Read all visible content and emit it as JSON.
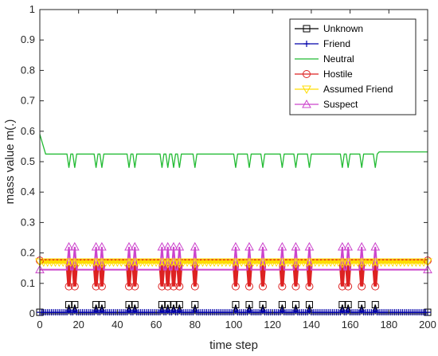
{
  "chart_data": {
    "type": "line",
    "xlabel": "time step",
    "ylabel": "mass value m(.)",
    "xlim": [
      0,
      200
    ],
    "ylim": [
      0,
      1
    ],
    "xticks": [
      "0",
      "20",
      "40",
      "60",
      "80",
      "100",
      "120",
      "140",
      "160",
      "180",
      "200"
    ],
    "yticks": [
      "0",
      "0.1",
      "0.2",
      "0.3",
      "0.4",
      "0.5",
      "0.6",
      "0.7",
      "0.8",
      "0.9",
      "1"
    ],
    "grid": false,
    "legend_position": "top-right",
    "event_steps": [
      15,
      18,
      29,
      32,
      46,
      49,
      63,
      66,
      69,
      72,
      80,
      101,
      108,
      115,
      125,
      132,
      139,
      156,
      159,
      166,
      173
    ],
    "series": [
      {
        "name": "Unknown",
        "color": "#000000",
        "marker": "square",
        "baseline": 0.005,
        "event_value": 0.03
      },
      {
        "name": "Friend",
        "color": "#0000aa",
        "marker": "plus",
        "baseline": 0.005,
        "event_value": 0.01
      },
      {
        "name": "Neutral",
        "color": "#22bb33",
        "marker": "none",
        "initial": 0.59,
        "baseline": 0.525,
        "event_value": 0.48,
        "final": 0.532
      },
      {
        "name": "Hostile",
        "color": "#dd2222",
        "marker": "circle",
        "baseline": 0.175,
        "event_value": 0.09
      },
      {
        "name": "Assumed Friend",
        "color": "#ffdd00",
        "marker": "triangle-down",
        "baseline": 0.17,
        "event_value": 0.165
      },
      {
        "name": "Suspect",
        "color": "#cc44cc",
        "marker": "triangle-up",
        "baseline": 0.145,
        "event_value": 0.22
      }
    ]
  }
}
